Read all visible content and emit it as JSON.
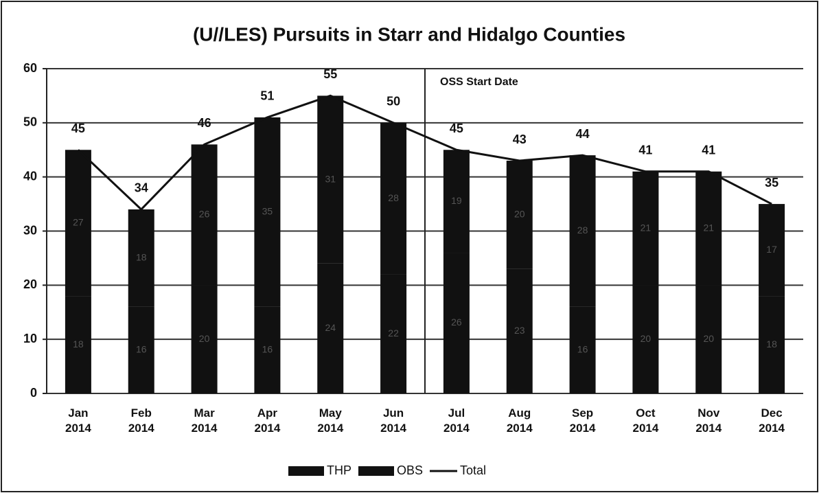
{
  "chart_data": {
    "type": "bar",
    "stacked": true,
    "title": "(U//LES)  Pursuits in Starr and Hidalgo Counties",
    "annotation": "OSS Start Date",
    "categories": [
      "Jan 2014",
      "Feb 2014",
      "Mar 2014",
      "Apr 2014",
      "May 2014",
      "Jun 2014",
      "Jul 2014",
      "Aug 2014",
      "Sep 2014",
      "Oct 2014",
      "Nov 2014",
      "Dec 2014"
    ],
    "series": [
      {
        "name": "THP",
        "color": "#111111",
        "values": [
          18,
          16,
          20,
          16,
          24,
          22,
          26,
          23,
          16,
          20,
          20,
          18
        ]
      },
      {
        "name": "OBS",
        "color": "#111111",
        "values": [
          27,
          18,
          26,
          35,
          31,
          28,
          19,
          20,
          28,
          21,
          21,
          17
        ]
      },
      {
        "name": "Total",
        "type": "line",
        "color": "#111111",
        "values": [
          45,
          34,
          46,
          51,
          55,
          50,
          45,
          43,
          44,
          41,
          41,
          35
        ]
      }
    ],
    "ylim": [
      0,
      60
    ],
    "yticks": [
      0,
      10,
      20,
      30,
      40,
      50,
      60
    ],
    "grid": true,
    "legend": "bottom"
  }
}
